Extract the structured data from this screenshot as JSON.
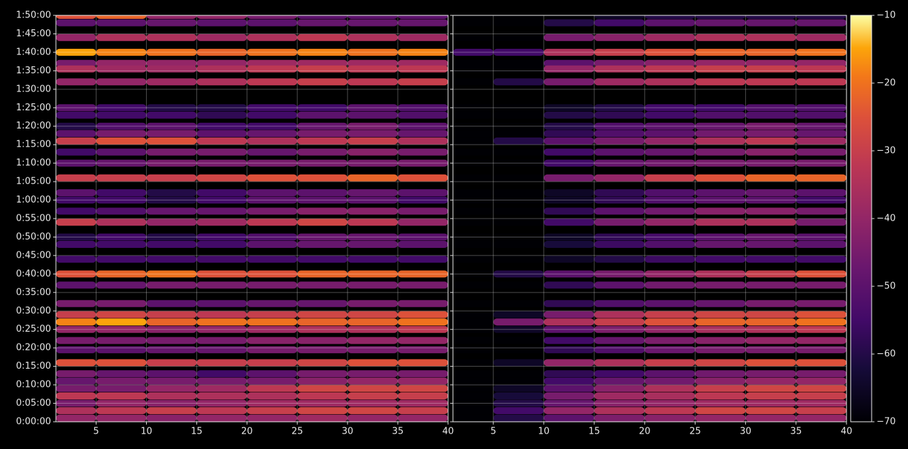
{
  "chart_data": [
    {
      "type": "heatmap",
      "x_bins": [
        1,
        5,
        10,
        15,
        20,
        25,
        30,
        35,
        40
      ],
      "y": [
        110,
        108,
        104,
        100,
        97,
        95.5,
        92,
        85,
        83,
        80,
        78,
        76,
        73,
        70,
        66,
        62,
        60,
        57,
        54,
        50,
        48,
        44,
        40,
        37,
        32,
        29,
        27,
        25,
        22,
        19.5,
        16,
        13,
        11,
        9,
        7,
        5,
        3,
        1
      ],
      "z": [
        [
          -25,
          -22,
          -40,
          -40,
          -45,
          -50,
          -50,
          -50
        ],
        [
          -50,
          -50,
          -48,
          -50,
          -50,
          -48,
          -48,
          -48
        ],
        [
          -40,
          -35,
          -35,
          -38,
          -35,
          -32,
          -35,
          -38
        ],
        [
          -15,
          -18,
          -20,
          -22,
          -20,
          -18,
          -20,
          -18
        ],
        [
          -45,
          -40,
          -40,
          -40,
          -38,
          -38,
          -38,
          -38
        ],
        [
          -35,
          -38,
          -38,
          -35,
          -32,
          -30,
          -32,
          -32
        ],
        [
          -40,
          -40,
          -38,
          -35,
          -32,
          -30,
          -32,
          -30
        ],
        [
          -50,
          -55,
          -60,
          -60,
          -55,
          -55,
          -50,
          -52
        ],
        [
          -55,
          -55,
          -55,
          -58,
          -55,
          -50,
          -50,
          -52
        ],
        [
          -60,
          -52,
          -50,
          -55,
          -55,
          -48,
          -45,
          -50
        ],
        [
          -50,
          -45,
          -45,
          -50,
          -48,
          -45,
          -45,
          -48
        ],
        [
          -30,
          -25,
          -25,
          -32,
          -35,
          -32,
          -30,
          -35
        ],
        [
          -55,
          -50,
          -45,
          -45,
          -48,
          -45,
          -42,
          -45
        ],
        [
          -50,
          -48,
          -45,
          -45,
          -45,
          -45,
          -45,
          -45
        ],
        [
          -30,
          -30,
          -30,
          -28,
          -25,
          -25,
          -22,
          -25
        ],
        [
          -50,
          -55,
          -60,
          -55,
          -50,
          -50,
          -48,
          -50
        ],
        [
          -55,
          -55,
          -60,
          -55,
          -50,
          -50,
          -50,
          -55
        ],
        [
          -55,
          -52,
          -48,
          -48,
          -45,
          -42,
          -42,
          -45
        ],
        [
          -30,
          -35,
          -40,
          -38,
          -32,
          -28,
          -32,
          -40
        ],
        [
          -60,
          -55,
          -60,
          -55,
          -52,
          -48,
          -48,
          -50
        ],
        [
          -55,
          -55,
          -55,
          -55,
          -50,
          -48,
          -48,
          -50
        ],
        [
          -55,
          -55,
          -55,
          -55,
          -55,
          -55,
          -55,
          -55
        ],
        [
          -25,
          -22,
          -20,
          -25,
          -25,
          -22,
          -22,
          -22
        ],
        [
          -50,
          -48,
          -45,
          -45,
          -45,
          -45,
          -45,
          -45
        ],
        [
          -45,
          -45,
          -50,
          -50,
          -48,
          -48,
          -45,
          -45
        ],
        [
          -30,
          -28,
          -30,
          -32,
          -30,
          -28,
          -28,
          -25
        ],
        [
          -18,
          -15,
          -22,
          -20,
          -20,
          -22,
          -22,
          -20
        ],
        [
          -40,
          -40,
          -42,
          -40,
          -38,
          -35,
          -35,
          -32
        ],
        [
          -45,
          -45,
          -45,
          -45,
          -42,
          -42,
          -40,
          -40
        ],
        [
          -50,
          -50,
          -48,
          -48,
          -45,
          -45,
          -45,
          -45
        ],
        [
          -25,
          -25,
          -30,
          -30,
          -30,
          -28,
          -25,
          -25
        ],
        [
          -45,
          -48,
          -50,
          -55,
          -50,
          -45,
          -45,
          -45
        ],
        [
          -48,
          -45,
          -45,
          -45,
          -45,
          -42,
          -40,
          -40
        ],
        [
          -45,
          -45,
          -40,
          -38,
          -32,
          -28,
          -28,
          -28
        ],
        [
          -32,
          -32,
          -35,
          -35,
          -35,
          -32,
          -30,
          -30
        ],
        [
          -45,
          -40,
          -42,
          -40,
          -38,
          -38,
          -38,
          -38
        ],
        [
          -35,
          -32,
          -30,
          -32,
          -30,
          -28,
          -28,
          -30
        ],
        [
          -40,
          -40,
          -42,
          -40,
          -40,
          -38,
          -40,
          -40
        ]
      ],
      "xlim": [
        1,
        40
      ],
      "xticks": [
        5,
        10,
        15,
        20,
        25,
        30,
        35,
        40
      ],
      "ylim": [
        0,
        110
      ],
      "yticks": [
        {
          "value": 0,
          "label": "0:00:00"
        },
        {
          "value": 5,
          "label": "0:05:00"
        },
        {
          "value": 10,
          "label": "0:10:00"
        },
        {
          "value": 15,
          "label": "0:15:00"
        },
        {
          "value": 20,
          "label": "0:20:00"
        },
        {
          "value": 25,
          "label": "0:25:00"
        },
        {
          "value": 30,
          "label": "0:30:00"
        },
        {
          "value": 35,
          "label": "0:35:00"
        },
        {
          "value": 40,
          "label": "0:40:00"
        },
        {
          "value": 45,
          "label": "0:45:00"
        },
        {
          "value": 50,
          "label": "0:50:00"
        },
        {
          "value": 55,
          "label": "0:55:00"
        },
        {
          "value": 60,
          "label": "1:00:00"
        },
        {
          "value": 65,
          "label": "1:05:00"
        },
        {
          "value": 70,
          "label": "1:10:00"
        },
        {
          "value": 75,
          "label": "1:15:00"
        },
        {
          "value": 80,
          "label": "1:20:00"
        },
        {
          "value": 85,
          "label": "1:25:00"
        },
        {
          "value": 90,
          "label": "1:30:00"
        },
        {
          "value": 95,
          "label": "1:35:00"
        },
        {
          "value": 100,
          "label": "1:40:00"
        },
        {
          "value": 105,
          "label": "1:45:00"
        },
        {
          "value": 110,
          "label": "1:50:00"
        }
      ],
      "grid": true
    },
    {
      "type": "heatmap",
      "x_bins": [
        1,
        5,
        10,
        15,
        20,
        25,
        30,
        35,
        40
      ],
      "y": [
        110,
        108,
        104,
        100,
        97,
        95.5,
        92,
        85,
        83,
        80,
        78,
        76,
        73,
        70,
        66,
        62,
        60,
        57,
        54,
        50,
        48,
        44,
        40,
        37,
        32,
        29,
        27,
        25,
        22,
        19.5,
        16,
        13,
        11,
        9,
        7,
        5,
        3,
        1
      ],
      "z": [
        [
          -70,
          -70,
          -70,
          -65,
          -60,
          -60,
          -60,
          -60
        ],
        [
          -70,
          -70,
          -60,
          -55,
          -50,
          -48,
          -48,
          -48
        ],
        [
          -70,
          -70,
          -45,
          -42,
          -38,
          -35,
          -35,
          -38
        ],
        [
          -55,
          -55,
          -35,
          -30,
          -25,
          -22,
          -22,
          -20
        ],
        [
          -70,
          -70,
          -50,
          -45,
          -42,
          -40,
          -40,
          -40
        ],
        [
          -70,
          -70,
          -40,
          -35,
          -32,
          -30,
          -30,
          -32
        ],
        [
          -70,
          -60,
          -45,
          -38,
          -35,
          -32,
          -32,
          -32
        ],
        [
          -70,
          -70,
          -65,
          -60,
          -55,
          -55,
          -52,
          -52
        ],
        [
          -70,
          -70,
          -60,
          -58,
          -55,
          -52,
          -52,
          -52
        ],
        [
          -70,
          -70,
          -60,
          -52,
          -50,
          -48,
          -45,
          -48
        ],
        [
          -70,
          -70,
          -58,
          -52,
          -50,
          -46,
          -45,
          -48
        ],
        [
          -70,
          -60,
          -50,
          -45,
          -40,
          -35,
          -32,
          -38
        ],
        [
          -70,
          -70,
          -55,
          -50,
          -48,
          -45,
          -42,
          -45
        ],
        [
          -70,
          -70,
          -55,
          -48,
          -46,
          -45,
          -45,
          -45
        ],
        [
          -70,
          -70,
          -45,
          -40,
          -30,
          -25,
          -22,
          -22
        ],
        [
          -70,
          -70,
          -65,
          -58,
          -52,
          -50,
          -48,
          -50
        ],
        [
          -70,
          -70,
          -65,
          -58,
          -52,
          -50,
          -50,
          -55
        ],
        [
          -70,
          -70,
          -58,
          -50,
          -46,
          -42,
          -42,
          -45
        ],
        [
          -70,
          -70,
          -55,
          -45,
          -40,
          -35,
          -35,
          -45
        ],
        [
          -70,
          -70,
          -65,
          -58,
          -54,
          -50,
          -48,
          -50
        ],
        [
          -70,
          -70,
          -62,
          -56,
          -52,
          -48,
          -48,
          -50
        ],
        [
          -70,
          -70,
          -65,
          -60,
          -56,
          -55,
          -55,
          -55
        ],
        [
          -70,
          -60,
          -50,
          -45,
          -40,
          -35,
          -30,
          -25
        ],
        [
          -70,
          -70,
          -58,
          -50,
          -46,
          -45,
          -45,
          -45
        ],
        [
          -70,
          -70,
          -58,
          -52,
          -50,
          -48,
          -45,
          -45
        ],
        [
          -70,
          -65,
          -45,
          -35,
          -30,
          -28,
          -28,
          -25
        ],
        [
          -70,
          -45,
          -35,
          -30,
          -25,
          -22,
          -22,
          -20
        ],
        [
          -70,
          -65,
          -50,
          -44,
          -40,
          -36,
          -35,
          -32
        ],
        [
          -70,
          -70,
          -55,
          -48,
          -44,
          -42,
          -40,
          -40
        ],
        [
          -70,
          -70,
          -58,
          -52,
          -47,
          -45,
          -45,
          -45
        ],
        [
          -70,
          -65,
          -40,
          -35,
          -30,
          -28,
          -25,
          -25
        ],
        [
          -70,
          -70,
          -58,
          -55,
          -50,
          -46,
          -45,
          -45
        ],
        [
          -70,
          -70,
          -55,
          -48,
          -46,
          -42,
          -40,
          -40
        ],
        [
          -70,
          -65,
          -50,
          -42,
          -35,
          -30,
          -28,
          -28
        ],
        [
          -70,
          -62,
          -45,
          -38,
          -36,
          -32,
          -30,
          -30
        ],
        [
          -70,
          -60,
          -48,
          -42,
          -40,
          -38,
          -38,
          -38
        ],
        [
          -70,
          -55,
          -40,
          -35,
          -32,
          -28,
          -28,
          -30
        ],
        [
          -70,
          -60,
          -50,
          -44,
          -42,
          -40,
          -40,
          -40
        ]
      ],
      "xlim": [
        1,
        40
      ],
      "xticks": [
        5,
        10,
        15,
        20,
        25,
        30,
        35,
        40
      ],
      "ylim": [
        0,
        110
      ],
      "grid": true
    },
    {
      "type": "colorbar",
      "ylim": [
        -70,
        -10
      ],
      "yticks": [
        {
          "value": -70,
          "label": "−70"
        },
        {
          "value": -60,
          "label": "−60"
        },
        {
          "value": -50,
          "label": "−50"
        },
        {
          "value": -40,
          "label": "−40"
        },
        {
          "value": -30,
          "label": "−30"
        },
        {
          "value": -20,
          "label": "−20"
        },
        {
          "value": -10,
          "label": "−10"
        }
      ]
    }
  ]
}
